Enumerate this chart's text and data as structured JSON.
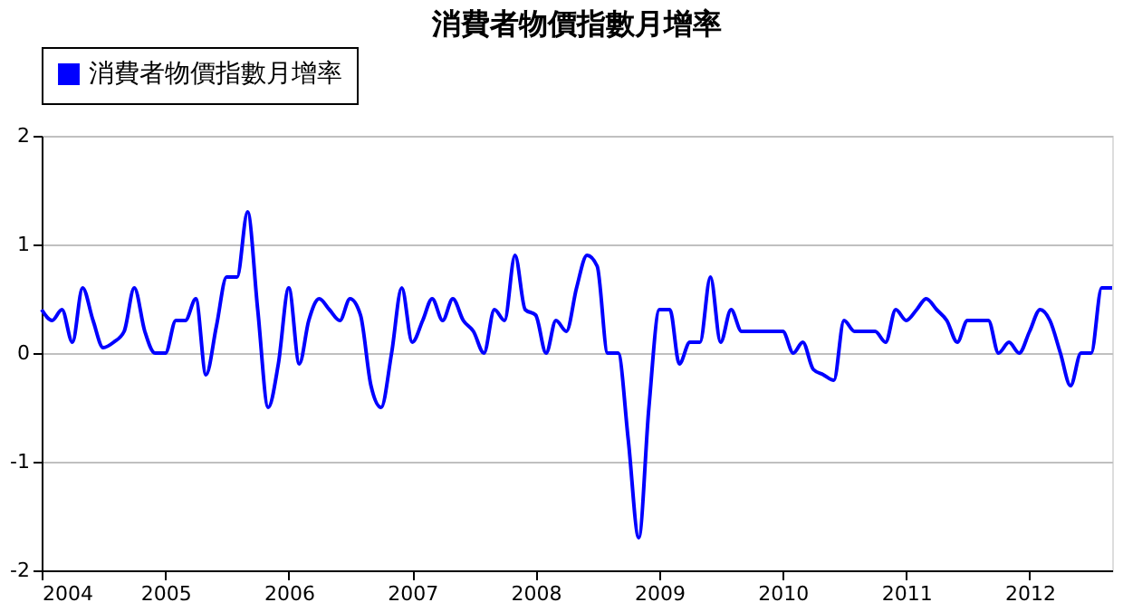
{
  "chart_data": {
    "type": "line",
    "title": "消費者物價指數月增率",
    "x": [
      "2004-01",
      "2004-02",
      "2004-03",
      "2004-04",
      "2004-05",
      "2004-06",
      "2004-07",
      "2004-08",
      "2004-09",
      "2004-10",
      "2004-11",
      "2004-12",
      "2005-01",
      "2005-02",
      "2005-03",
      "2005-04",
      "2005-05",
      "2005-06",
      "2005-07",
      "2005-08",
      "2005-09",
      "2005-10",
      "2005-11",
      "2005-12",
      "2006-01",
      "2006-02",
      "2006-03",
      "2006-04",
      "2006-05",
      "2006-06",
      "2006-07",
      "2006-08",
      "2006-09",
      "2006-10",
      "2006-11",
      "2006-12",
      "2007-01",
      "2007-02",
      "2007-03",
      "2007-04",
      "2007-05",
      "2007-06",
      "2007-07",
      "2007-08",
      "2007-09",
      "2007-10",
      "2007-11",
      "2007-12",
      "2008-01",
      "2008-02",
      "2008-03",
      "2008-04",
      "2008-05",
      "2008-06",
      "2008-07",
      "2008-08",
      "2008-09",
      "2008-10",
      "2008-11",
      "2008-12",
      "2009-01",
      "2009-02",
      "2009-03",
      "2009-04",
      "2009-05",
      "2009-06",
      "2009-07",
      "2009-08",
      "2009-09",
      "2009-10",
      "2009-11",
      "2009-12",
      "2010-01",
      "2010-02",
      "2010-03",
      "2010-04",
      "2010-05",
      "2010-06",
      "2010-07",
      "2010-08",
      "2010-09",
      "2010-10",
      "2010-11",
      "2010-12",
      "2011-01",
      "2011-02",
      "2011-03",
      "2011-04",
      "2011-05",
      "2011-06",
      "2011-07",
      "2011-08",
      "2011-09",
      "2011-10",
      "2011-11",
      "2011-12",
      "2012-01",
      "2012-02",
      "2012-03",
      "2012-04",
      "2012-05",
      "2012-06",
      "2012-07",
      "2012-08",
      "2012-09"
    ],
    "series": [
      {
        "name": "消費者物價指數月增率",
        "color": "#0000ff",
        "values": [
          0.4,
          0.3,
          0.4,
          0.1,
          0.6,
          0.3,
          0.05,
          0.1,
          0.2,
          0.6,
          0.2,
          0.0,
          0.0,
          0.3,
          0.3,
          0.5,
          -0.2,
          0.25,
          0.7,
          0.7,
          1.3,
          0.4,
          -0.5,
          -0.1,
          0.6,
          -0.1,
          0.3,
          0.5,
          0.4,
          0.3,
          0.5,
          0.35,
          -0.3,
          -0.5,
          0.0,
          0.6,
          0.1,
          0.3,
          0.5,
          0.3,
          0.5,
          0.3,
          0.2,
          0.0,
          0.4,
          0.3,
          0.9,
          0.4,
          0.35,
          0.0,
          0.3,
          0.2,
          0.6,
          0.9,
          0.8,
          0.0,
          0.0,
          -0.8,
          -1.7,
          -0.5,
          0.4,
          0.4,
          -0.1,
          0.1,
          0.1,
          0.7,
          0.1,
          0.4,
          0.2,
          0.2,
          0.2,
          0.2,
          0.2,
          0.0,
          0.1,
          -0.15,
          -0.2,
          -0.25,
          0.3,
          0.2,
          0.2,
          0.2,
          0.1,
          0.4,
          0.3,
          0.4,
          0.5,
          0.4,
          0.3,
          0.1,
          0.3,
          0.3,
          0.3,
          0.0,
          0.1,
          0.0,
          0.2,
          0.4,
          0.3,
          0.0,
          -0.3,
          0.0,
          0.0,
          0.6,
          0.6
        ]
      }
    ],
    "xlim": [
      "2004-01",
      "2012-09"
    ],
    "xticks": [
      {
        "value": "2004",
        "label": "2004"
      },
      {
        "value": "2005",
        "label": "2005"
      },
      {
        "value": "2006",
        "label": "2006"
      },
      {
        "value": "2007",
        "label": "2007"
      },
      {
        "value": "2008",
        "label": "2008"
      },
      {
        "value": "2009",
        "label": "2009"
      },
      {
        "value": "2010",
        "label": "2010"
      },
      {
        "value": "2011",
        "label": "2011"
      },
      {
        "value": "2012",
        "label": "2012"
      }
    ],
    "ylim": [
      -2,
      2
    ],
    "yticks": [
      -2,
      -1,
      0,
      1,
      2
    ],
    "grid": "y",
    "legend": "top left",
    "marker": "none",
    "line_style": "solid"
  }
}
